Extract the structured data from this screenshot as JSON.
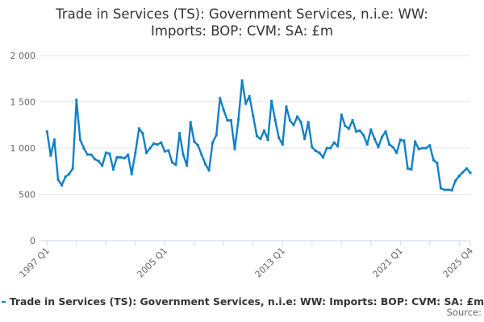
{
  "title": {
    "line1": "Trade in Services (TS): Government Services, n.i.e: WW:",
    "line2": "Imports: BOP: CVM: SA: £m"
  },
  "legend": {
    "label": "Trade in Services (TS): Government Services, n.i.e: WW: Imports: BOP: CVM: SA: £m"
  },
  "source_label": "Source:",
  "colors": {
    "series": "#1380c4",
    "gridline": "#e6e6e6",
    "axis": "#ccd6eb",
    "title_text": "#333333",
    "axis_text": "#666666"
  },
  "chart_data": {
    "type": "line",
    "title": "Trade in Services (TS): Government Services, n.i.e: WW: Imports: BOP: CVM: SA: £m",
    "x_period_start": "1997 Q1",
    "x_period_end": "2025 Q4",
    "frequency": "quarterly",
    "n_points": 116,
    "x_tick_labels": [
      "1997 Q1",
      "2005 Q1",
      "2013 Q1",
      "2021 Q1",
      "2025 Q4"
    ],
    "y_tick_labels": [
      "2 000",
      "1 500",
      "1 000",
      "500",
      "0"
    ],
    "ylim": [
      0,
      2000
    ],
    "grid": "horizontal",
    "legend_position": "bottom-left",
    "marker": "square",
    "values": [
      1180,
      920,
      1090,
      660,
      600,
      690,
      720,
      780,
      1520,
      1090,
      1000,
      930,
      930,
      880,
      860,
      810,
      950,
      940,
      770,
      900,
      900,
      890,
      930,
      720,
      950,
      1210,
      1160,
      950,
      1000,
      1050,
      1040,
      1060,
      965,
      975,
      845,
      820,
      1160,
      930,
      810,
      1280,
      1070,
      1030,
      930,
      830,
      760,
      1060,
      1140,
      1540,
      1410,
      1300,
      1300,
      990,
      1310,
      1730,
      1480,
      1560,
      1350,
      1130,
      1100,
      1190,
      1090,
      1510,
      1300,
      1110,
      1040,
      1450,
      1300,
      1250,
      1340,
      1280,
      1100,
      1280,
      1010,
      970,
      950,
      900,
      1000,
      1000,
      1060,
      1020,
      1360,
      1240,
      1210,
      1300,
      1180,
      1190,
      1140,
      1040,
      1200,
      1100,
      1010,
      1120,
      1180,
      1040,
      1010,
      950,
      1090,
      1080,
      780,
      770,
      1070,
      990,
      1000,
      1000,
      1030,
      870,
      840,
      565,
      550,
      550,
      545,
      650,
      700,
      740,
      780,
      735
    ]
  }
}
